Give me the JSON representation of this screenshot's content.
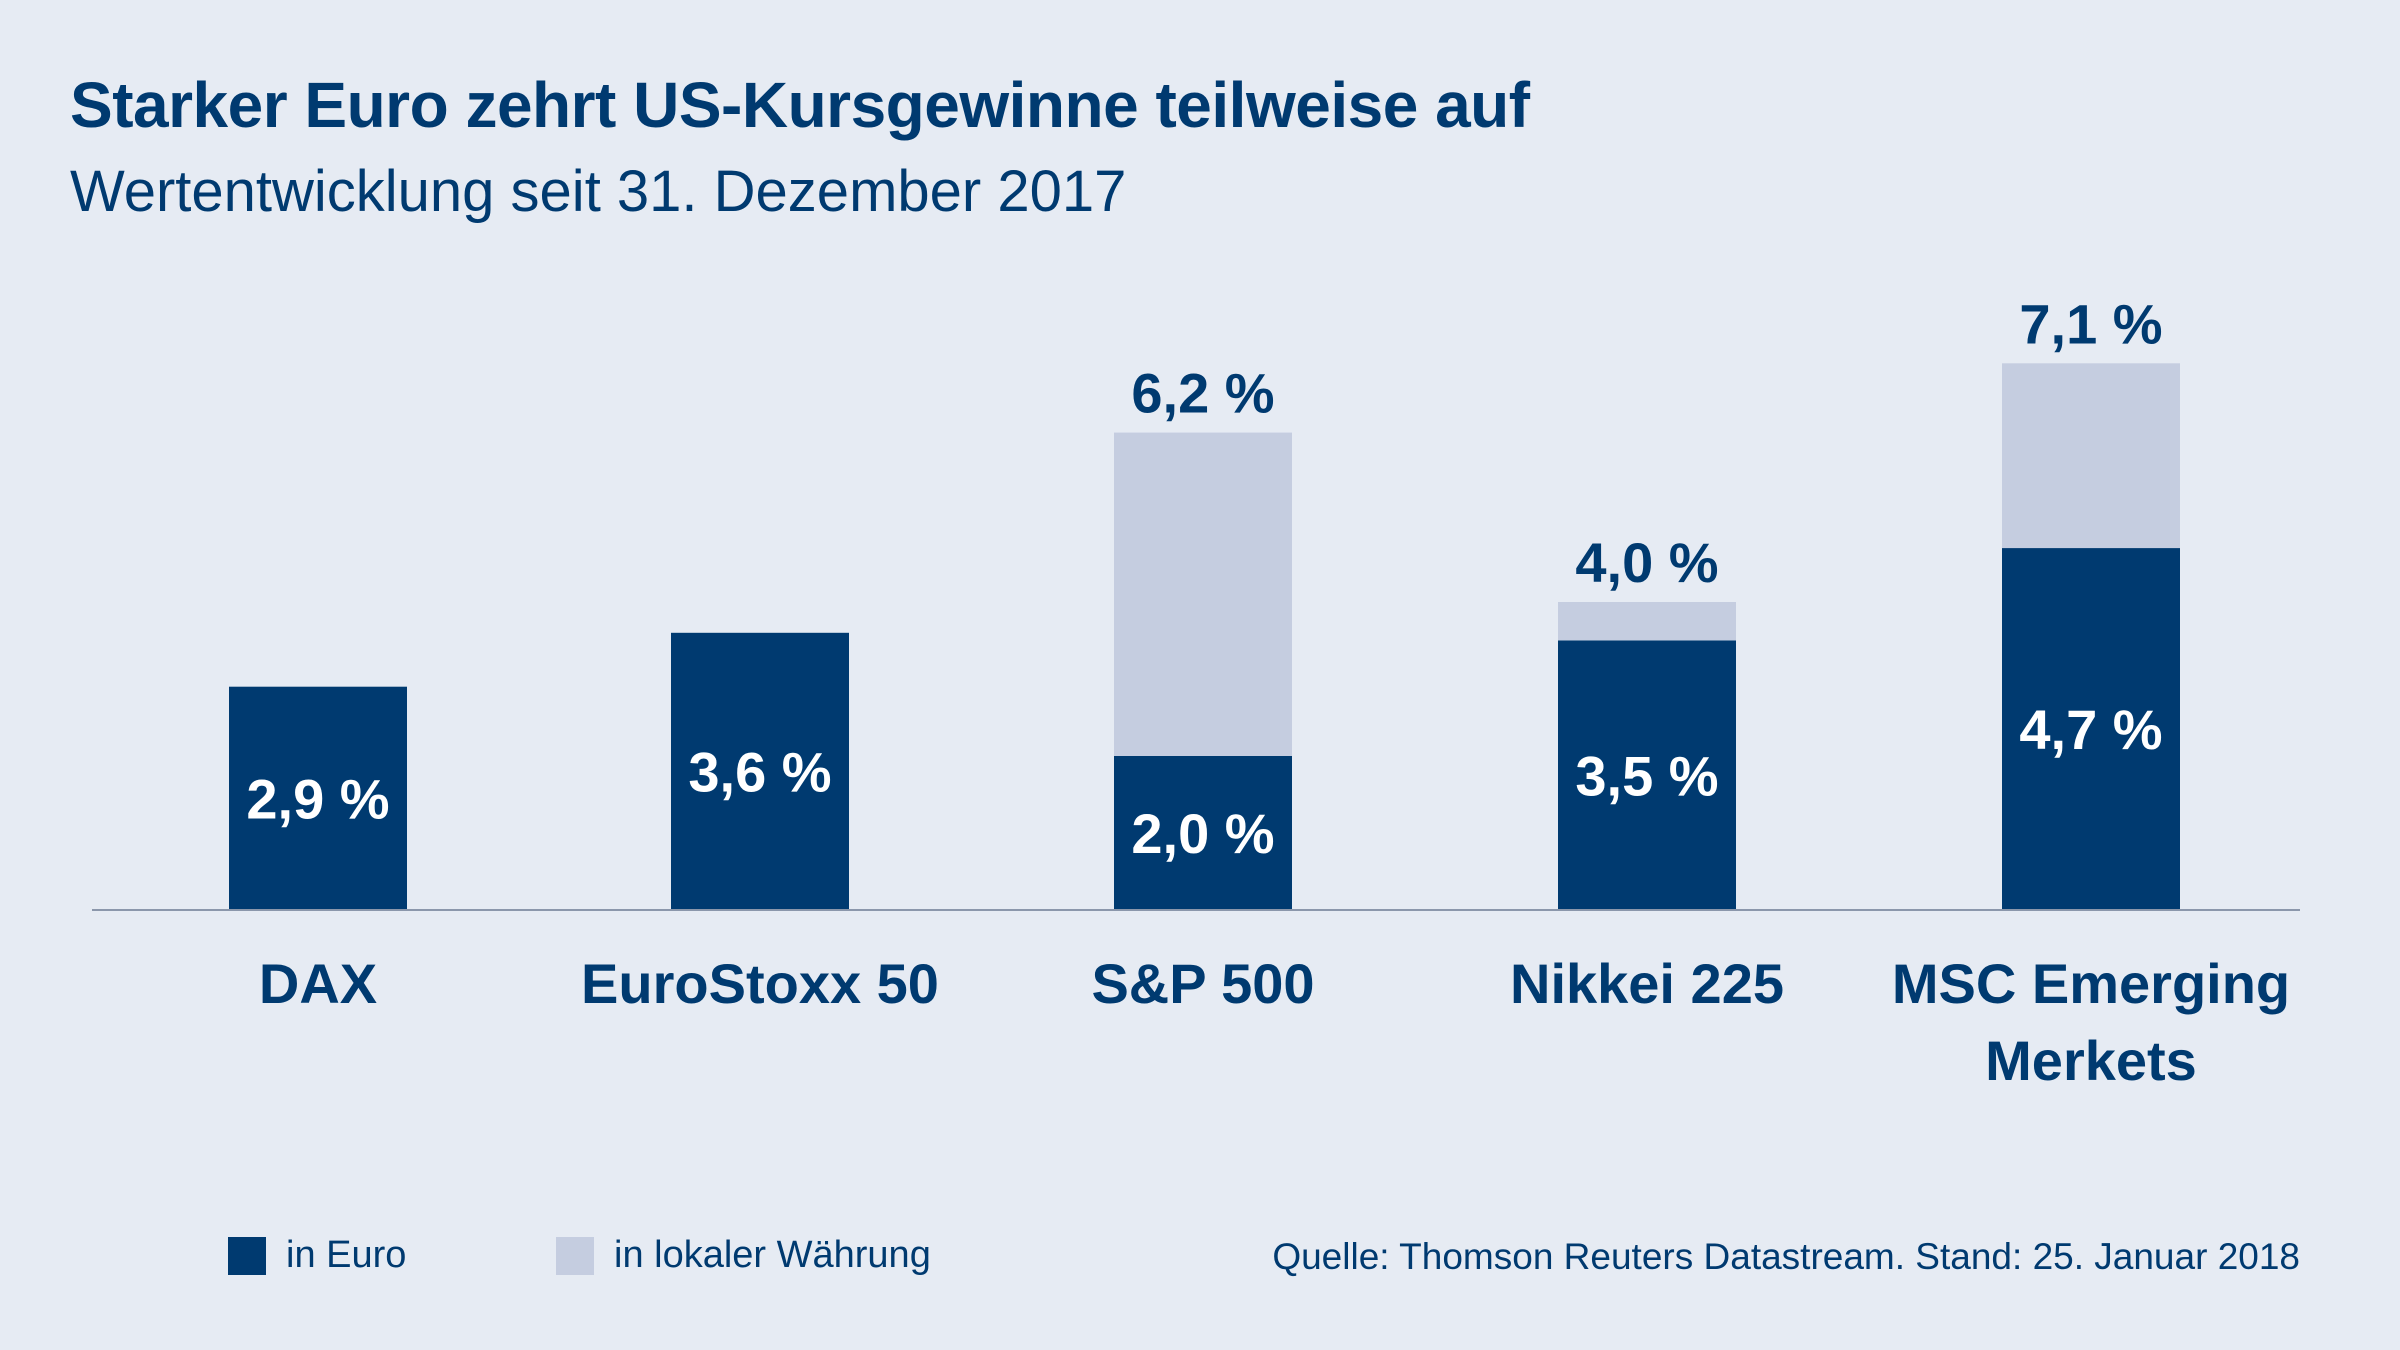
{
  "chart_data": {
    "type": "bar",
    "title": "Starker Euro zehrt US-Kursgewinne teilweise auf",
    "subtitle": "Wertentwicklung seit 31. Dezember 2017",
    "categories": [
      {
        "lines": [
          "DAX"
        ]
      },
      {
        "lines": [
          "EuroStoxx 50"
        ]
      },
      {
        "lines": [
          "S&P 500"
        ]
      },
      {
        "lines": [
          "Nikkei 225"
        ]
      },
      {
        "lines": [
          "MSC Emerging",
          "Merkets"
        ]
      }
    ],
    "series": [
      {
        "name": "in Euro",
        "color": "#003a70",
        "values": [
          2.9,
          3.6,
          2.0,
          3.5,
          4.7
        ],
        "labels": [
          "2,9 %",
          "3,6 %",
          "2,0 %",
          "3,5 %",
          "4,7 %"
        ]
      },
      {
        "name": "in lokaler Währung",
        "color": "#c5cde0",
        "values": [
          null,
          null,
          6.2,
          4.0,
          7.1
        ],
        "labels": [
          null,
          null,
          "6,2 %",
          "4,0 %",
          "7,1 %"
        ]
      }
    ],
    "ylim": [
      0,
      8
    ],
    "grid": false,
    "legend_position": "bottom-left",
    "source": "Quelle: Thomson Reuters Datastream. Stand: 25. Januar 2018"
  }
}
